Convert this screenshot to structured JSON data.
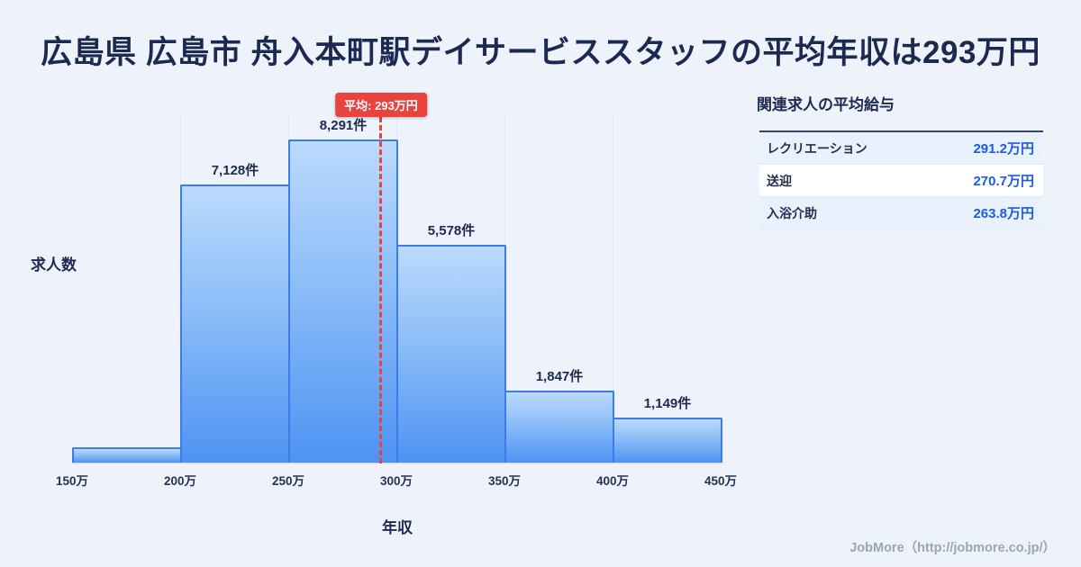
{
  "chart_data": {
    "type": "bar",
    "title": "広島県 広島市 舟入本町駅デイサービススタッフの平均年収は293万円",
    "xlabel": "年収",
    "ylabel": "求人数",
    "x_ticks": [
      "150万",
      "200万",
      "250万",
      "300万",
      "350万",
      "400万",
      "450万"
    ],
    "xlim": [
      150,
      450
    ],
    "ylim": [
      0,
      9000
    ],
    "grid": true,
    "bins": [
      {
        "range": "150万-200万",
        "count": 400,
        "label": ""
      },
      {
        "range": "200万-250万",
        "count": 7128,
        "label": "7,128件"
      },
      {
        "range": "250万-300万",
        "count": 8291,
        "label": "8,291件"
      },
      {
        "range": "300万-350万",
        "count": 5578,
        "label": "5,578件"
      },
      {
        "range": "350万-400万",
        "count": 1847,
        "label": "1,847件"
      },
      {
        "range": "400万-450万",
        "count": 1149,
        "label": "1,149件"
      }
    ],
    "average": {
      "value": 293,
      "label": "平均: 293万円"
    },
    "colors": {
      "bar_fill_top": "#bcdafc",
      "bar_fill_bottom": "#4e93f3",
      "bar_border": "#3d7ce8",
      "average_line": "#e8433f",
      "title_text": "#1c2a52",
      "background": "#eef3fb"
    }
  },
  "related_jobs": {
    "heading": "関連求人の平均給与",
    "rows": [
      {
        "label": "レクリエーション",
        "value": "291.2万円"
      },
      {
        "label": "送迎",
        "value": "270.7万円"
      },
      {
        "label": "入浴介助",
        "value": "263.8万円"
      }
    ]
  },
  "footer": {
    "credit": "JobMore（http://jobmore.co.jp/）"
  }
}
